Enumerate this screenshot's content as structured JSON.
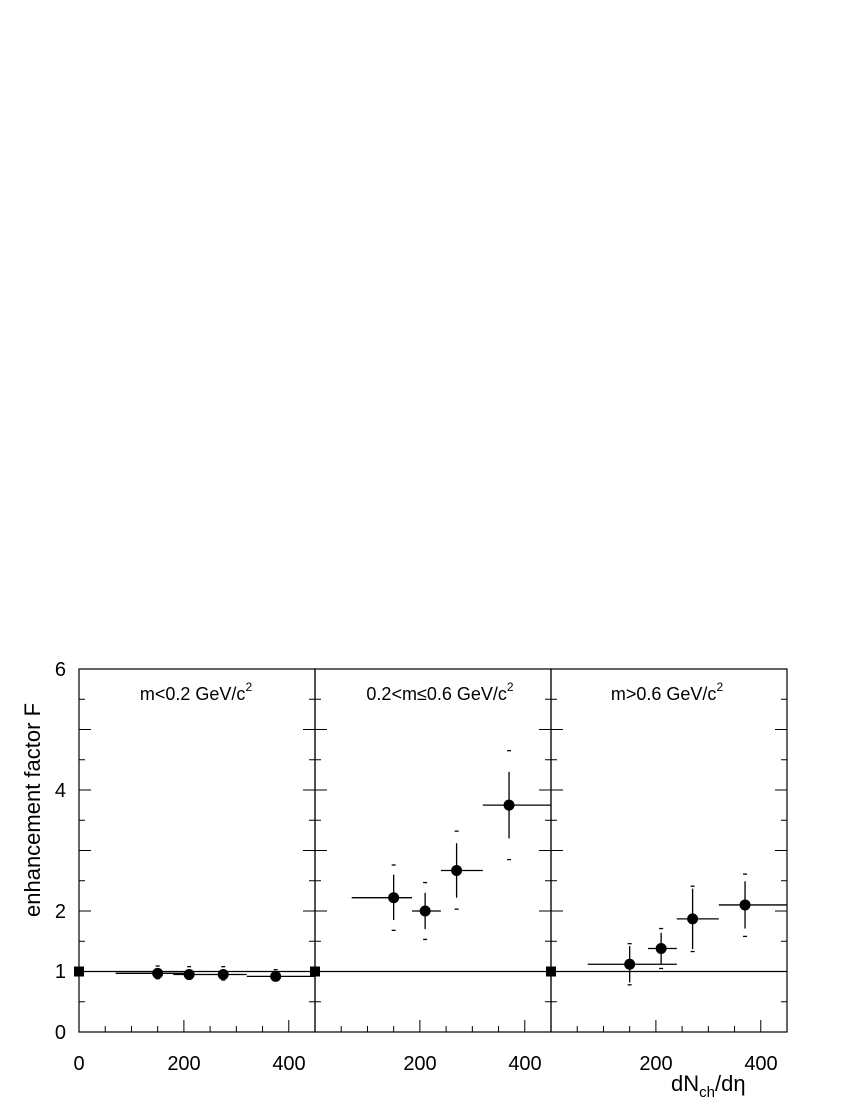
{
  "chart_data": {
    "type": "scatter",
    "ylabel": "enhancement factor  F",
    "xlabel_main": "dN",
    "xlabel_sub": "ch",
    "xlabel_tail": "/dη",
    "ylim": [
      0,
      6
    ],
    "y_ticks": [
      0,
      1,
      2,
      4,
      6
    ],
    "xlim": [
      0,
      450
    ],
    "x_ticks": [
      0,
      200,
      400
    ],
    "reference_line": 1,
    "panels": [
      {
        "title": "m<0.2 GeV/c",
        "title_sup": "2",
        "x_tick_labels": [
          "0",
          "200",
          "400"
        ],
        "reference_marker_x": 0,
        "points": [
          {
            "x": 150,
            "y": 0.97,
            "x_err": [
              70,
              200
            ],
            "y_err": [
              0.93,
              1.03
            ],
            "sys_err": [
              0.88,
              1.09
            ]
          },
          {
            "x": 210,
            "y": 0.95,
            "x_err": [
              180,
              240
            ],
            "y_err": [
              0.91,
              1.0
            ],
            "sys_err": [
              0.87,
              1.08
            ]
          },
          {
            "x": 275,
            "y": 0.95,
            "x_err": [
              240,
              320
            ],
            "y_err": [
              0.91,
              0.99
            ],
            "sys_err": [
              0.86,
              1.08
            ]
          },
          {
            "x": 375,
            "y": 0.92,
            "x_err": [
              320,
              450
            ],
            "y_err": [
              0.87,
              0.97
            ],
            "sys_err": [
              0.85,
              1.03
            ]
          }
        ]
      },
      {
        "title": "0.2<m≤0.6 GeV/c",
        "title_sup": "2",
        "x_tick_labels": [
          "200",
          "400"
        ],
        "reference_marker_x": 0,
        "points": [
          {
            "x": 150,
            "y": 2.22,
            "x_err": [
              70,
              185
            ],
            "y_err": [
              1.85,
              2.6
            ],
            "sys_err": [
              1.68,
              2.76
            ]
          },
          {
            "x": 210,
            "y": 2.0,
            "x_err": [
              185,
              240
            ],
            "y_err": [
              1.7,
              2.3
            ],
            "sys_err": [
              1.53,
              2.47
            ]
          },
          {
            "x": 270,
            "y": 2.67,
            "x_err": [
              240,
              320
            ],
            "y_err": [
              2.22,
              3.12
            ],
            "sys_err": [
              2.03,
              3.32
            ]
          },
          {
            "x": 370,
            "y": 3.75,
            "x_err": [
              320,
              450
            ],
            "y_err": [
              3.2,
              4.3
            ],
            "sys_err": [
              2.85,
              4.65
            ]
          }
        ]
      },
      {
        "title": "m>0.6 GeV/c",
        "title_sup": "2",
        "x_tick_labels": [
          "200",
          "400"
        ],
        "reference_marker_x": 0,
        "points": [
          {
            "x": 150,
            "y": 1.12,
            "x_err": [
              70,
              240
            ],
            "y_err": [
              0.82,
              1.42
            ],
            "sys_err": [
              0.78,
              1.46
            ]
          },
          {
            "x": 210,
            "y": 1.38,
            "x_err": [
              185,
              240
            ],
            "y_err": [
              1.12,
              1.64
            ],
            "sys_err": [
              1.05,
              1.71
            ]
          },
          {
            "x": 270,
            "y": 1.87,
            "x_err": [
              240,
              320
            ],
            "y_err": [
              1.37,
              2.37
            ],
            "sys_err": [
              1.33,
              2.41
            ]
          },
          {
            "x": 370,
            "y": 2.1,
            "x_err": [
              320,
              450
            ],
            "y_err": [
              1.71,
              2.49
            ],
            "sys_err": [
              1.58,
              2.61
            ]
          }
        ]
      }
    ]
  }
}
